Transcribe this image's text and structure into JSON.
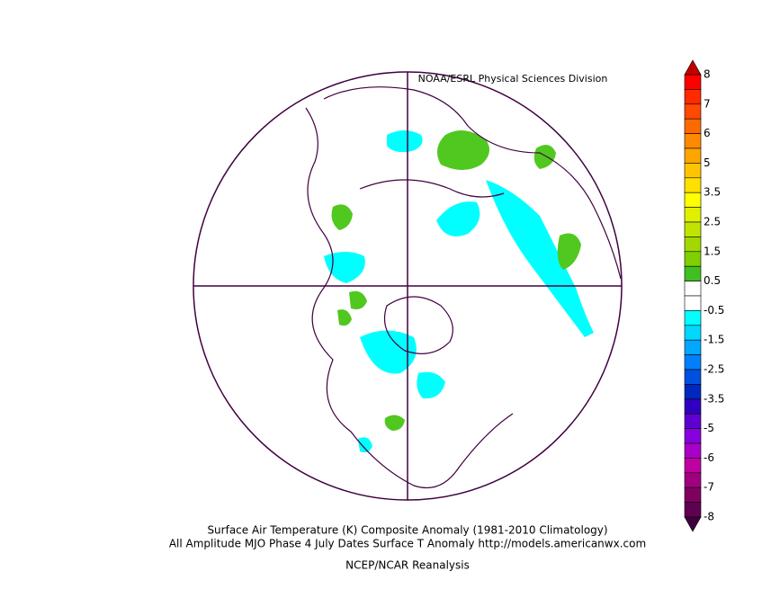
{
  "header": "NOAA/ESRL Physical Sciences Division",
  "caption": {
    "line1": "Surface Air Temperature (K) Composite Anomaly (1981-2010 Climatology)",
    "line2": "All Amplitude MJO Phase 4 July Dates Surface T Anomaly http://models.americanwx.com",
    "source": "NCEP/NCAR Reanalysis"
  },
  "colorbar": {
    "labels": [
      8,
      7,
      6,
      5,
      3.5,
      2.5,
      1.5,
      0.5,
      -0.5,
      -1.5,
      -2.5,
      -3.5,
      -5,
      -6,
      -7,
      -8
    ],
    "over_color": "#c00000",
    "under_color": "#400040",
    "colors": [
      "#ff0000",
      "#ff2a00",
      "#ff4a00",
      "#ff6a00",
      "#ff8a00",
      "#ffa500",
      "#ffc400",
      "#ffe000",
      "#ffff00",
      "#e0f000",
      "#c0e400",
      "#a0d800",
      "#80d000",
      "#40c020",
      "#ffffff",
      "#ffffff",
      "#00ffff",
      "#00d8ff",
      "#00a8ff",
      "#0080ff",
      "#0050e0",
      "#0028c0",
      "#3000c0",
      "#6000d0",
      "#8800e0",
      "#a800c8",
      "#c000a0",
      "#a00080",
      "#800060",
      "#600050"
    ]
  }
}
